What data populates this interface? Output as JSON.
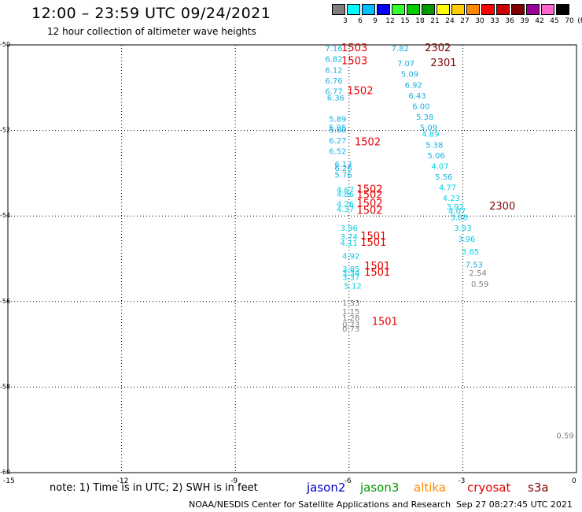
{
  "header": {
    "title": "12:00 – 23:59 UTC 09/24/2021",
    "subtitle": "12 hour collection of altimeter wave heights"
  },
  "colorbar": {
    "unit": "(ft)",
    "swatches": [
      {
        "label": "3",
        "color": "#7f7f7f"
      },
      {
        "label": "6",
        "color": "#00ffff"
      },
      {
        "label": "9",
        "color": "#00bfff"
      },
      {
        "label": "12",
        "color": "#0000ff"
      },
      {
        "label": "15",
        "color": "#33ff33"
      },
      {
        "label": "18",
        "color": "#00cc00"
      },
      {
        "label": "21",
        "color": "#009900"
      },
      {
        "label": "24",
        "color": "#ffff00"
      },
      {
        "label": "27",
        "color": "#ffcc00"
      },
      {
        "label": "30",
        "color": "#ff8800"
      },
      {
        "label": "33",
        "color": "#ff0000"
      },
      {
        "label": "36",
        "color": "#cc0000"
      },
      {
        "label": "39",
        "color": "#800000"
      },
      {
        "label": "42",
        "color": "#990099"
      },
      {
        "label": "45",
        "color": "#ff66cc"
      },
      {
        "label": "70",
        "color": "#000000"
      }
    ]
  },
  "chart_data": {
    "type": "scatter",
    "xlim": [
      -15,
      0
    ],
    "ylim": [
      -60,
      -50
    ],
    "x_ticks": [
      "-15",
      "-12",
      "-9",
      "-6",
      "-3",
      "0"
    ],
    "y_ticks": [
      "-50",
      "-52",
      "-54",
      "-56",
      "-58",
      "-60"
    ],
    "grid": "dotted",
    "wave_heights": [
      {
        "x": -6.4,
        "y": -50.15,
        "text": "7.16",
        "color": "#1ab0e0"
      },
      {
        "x": -6.4,
        "y": -50.4,
        "text": "6.82",
        "color": "#1ab0e0"
      },
      {
        "x": -6.4,
        "y": -50.65,
        "text": "6.12",
        "color": "#1ab0e0"
      },
      {
        "x": -6.4,
        "y": -50.9,
        "text": "6.76",
        "color": "#1ab0e0"
      },
      {
        "x": -6.4,
        "y": -51.15,
        "text": "6.77",
        "color": "#1ab0e0"
      },
      {
        "x": -6.35,
        "y": -51.3,
        "text": "6.36",
        "color": "#1ab0e0"
      },
      {
        "x": -6.3,
        "y": -51.8,
        "text": "5.89",
        "color": "#1ab0e0"
      },
      {
        "x": -6.3,
        "y": -52.0,
        "text": "5.95",
        "color": "#1ab0e0"
      },
      {
        "x": -6.3,
        "y": -52.05,
        "text": "5.80",
        "color": "#1ab0e0"
      },
      {
        "x": -6.3,
        "y": -52.3,
        "text": "6.27",
        "color": "#1ab0e0"
      },
      {
        "x": -6.3,
        "y": -52.55,
        "text": "6.52",
        "color": "#1ab0e0"
      },
      {
        "x": -6.15,
        "y": -52.85,
        "text": "6.13",
        "color": "#1ab0e0"
      },
      {
        "x": -6.15,
        "y": -52.95,
        "text": "6.26",
        "color": "#1ab0e0"
      },
      {
        "x": -6.15,
        "y": -53.1,
        "text": "5.76",
        "color": "#1ab0e0"
      },
      {
        "x": -6.1,
        "y": -53.45,
        "text": "4.67",
        "color": "#00d0e8"
      },
      {
        "x": -6.1,
        "y": -53.55,
        "text": "4.86",
        "color": "#00d0e8"
      },
      {
        "x": -6.1,
        "y": -53.78,
        "text": "4.26",
        "color": "#00d0e8"
      },
      {
        "x": -6.1,
        "y": -53.9,
        "text": "4.37",
        "color": "#00d0e8"
      },
      {
        "x": -6.0,
        "y": -54.35,
        "text": "3.96",
        "color": "#00d0e8"
      },
      {
        "x": -6.0,
        "y": -54.55,
        "text": "3.74",
        "color": "#00d0e8"
      },
      {
        "x": -6.0,
        "y": -54.7,
        "text": "4.11",
        "color": "#00d0e8"
      },
      {
        "x": -5.95,
        "y": -55.0,
        "text": "4.92",
        "color": "#00d0e8"
      },
      {
        "x": -5.95,
        "y": -55.3,
        "text": "3.85",
        "color": "#00d0e8"
      },
      {
        "x": -5.95,
        "y": -55.4,
        "text": "3.34",
        "color": "#00d0e8"
      },
      {
        "x": -5.95,
        "y": -55.5,
        "text": "3.37",
        "color": "#00d0e8"
      },
      {
        "x": -5.9,
        "y": -55.7,
        "text": "5.12",
        "color": "#00d0e8"
      },
      {
        "x": -5.95,
        "y": -56.1,
        "text": "1.33",
        "color": "#7f7f7f"
      },
      {
        "x": -5.95,
        "y": -56.3,
        "text": "1.15",
        "color": "#7f7f7f"
      },
      {
        "x": -5.95,
        "y": -56.45,
        "text": "1.28",
        "color": "#7f7f7f"
      },
      {
        "x": -5.95,
        "y": -56.6,
        "text": "0.73",
        "color": "#7f7f7f"
      },
      {
        "x": -5.95,
        "y": -56.7,
        "text": "0.73",
        "color": "#7f7f7f"
      },
      {
        "x": -4.65,
        "y": -50.15,
        "text": "7.82",
        "color": "#1ab0e0"
      },
      {
        "x": -4.5,
        "y": -50.5,
        "text": "7.07",
        "color": "#1ab0e0"
      },
      {
        "x": -4.4,
        "y": -50.75,
        "text": "5.09",
        "color": "#1ab0e0"
      },
      {
        "x": -4.3,
        "y": -51.0,
        "text": "6.92",
        "color": "#1ab0e0"
      },
      {
        "x": -4.2,
        "y": -51.25,
        "text": "6.43",
        "color": "#1ab0e0"
      },
      {
        "x": -4.1,
        "y": -51.5,
        "text": "6.00",
        "color": "#1ab0e0"
      },
      {
        "x": -4.0,
        "y": -51.75,
        "text": "5.38",
        "color": "#1ab0e0"
      },
      {
        "x": -3.9,
        "y": -52.0,
        "text": "5.09",
        "color": "#1ab0e0"
      },
      {
        "x": -3.85,
        "y": -52.15,
        "text": "4.89",
        "color": "#00d0e8"
      },
      {
        "x": -3.75,
        "y": -52.4,
        "text": "5.38",
        "color": "#1ab0e0"
      },
      {
        "x": -3.7,
        "y": -52.65,
        "text": "5.06",
        "color": "#1ab0e0"
      },
      {
        "x": -3.6,
        "y": -52.9,
        "text": "4.07",
        "color": "#00d0e8"
      },
      {
        "x": -3.5,
        "y": -53.15,
        "text": "5.56",
        "color": "#1ab0e0"
      },
      {
        "x": -3.4,
        "y": -53.4,
        "text": "4.77",
        "color": "#00d0e8"
      },
      {
        "x": -3.3,
        "y": -53.65,
        "text": "4.23",
        "color": "#00d0e8"
      },
      {
        "x": -3.2,
        "y": -53.85,
        "text": "3.92",
        "color": "#00d0e8"
      },
      {
        "x": -3.15,
        "y": -53.95,
        "text": "4.07",
        "color": "#00d0e8"
      },
      {
        "x": -3.1,
        "y": -54.1,
        "text": "3.88",
        "color": "#00d0e8"
      },
      {
        "x": -3.0,
        "y": -54.35,
        "text": "3.93",
        "color": "#00d0e8"
      },
      {
        "x": -2.9,
        "y": -54.6,
        "text": "3.96",
        "color": "#00d0e8"
      },
      {
        "x": -2.8,
        "y": -54.9,
        "text": "3.65",
        "color": "#00d0e8"
      },
      {
        "x": -2.7,
        "y": -55.2,
        "text": "7.53",
        "color": "#1ab0e0"
      },
      {
        "x": -2.6,
        "y": -55.4,
        "text": "2.54",
        "color": "#7f7f7f"
      },
      {
        "x": -2.55,
        "y": -55.65,
        "text": "0.59",
        "color": "#7f7f7f"
      },
      {
        "x": -0.3,
        "y": -59.2,
        "text": "0.59",
        "color": "#7f7f7f"
      }
    ],
    "pass_times": [
      {
        "x": -6.2,
        "y": -50.15,
        "text": "1503",
        "color": "#e60000"
      },
      {
        "x": -6.2,
        "y": -50.45,
        "text": "1503",
        "color": "#e60000"
      },
      {
        "x": -6.05,
        "y": -51.15,
        "text": "1502",
        "color": "#e60000"
      },
      {
        "x": -5.85,
        "y": -52.35,
        "text": "1502",
        "color": "#e60000"
      },
      {
        "x": -5.8,
        "y": -53.45,
        "text": "1502",
        "color": "#e60000"
      },
      {
        "x": -5.8,
        "y": -53.58,
        "text": "1502",
        "color": "#e60000"
      },
      {
        "x": -5.8,
        "y": -53.78,
        "text": "1502",
        "color": "#e60000"
      },
      {
        "x": -5.8,
        "y": -53.95,
        "text": "1502",
        "color": "#e60000"
      },
      {
        "x": -5.7,
        "y": -54.55,
        "text": "1501",
        "color": "#e60000"
      },
      {
        "x": -5.7,
        "y": -54.7,
        "text": "1501",
        "color": "#e60000"
      },
      {
        "x": -5.6,
        "y": -55.25,
        "text": "1501",
        "color": "#e60000"
      },
      {
        "x": -5.6,
        "y": -55.4,
        "text": "1501",
        "color": "#e60000"
      },
      {
        "x": -5.4,
        "y": -56.55,
        "text": "1501",
        "color": "#e60000"
      },
      {
        "x": -4.0,
        "y": -50.15,
        "text": "2302",
        "color": "#800000"
      },
      {
        "x": -3.85,
        "y": -50.5,
        "text": "2301",
        "color": "#800000"
      },
      {
        "x": -2.3,
        "y": -53.85,
        "text": "2300",
        "color": "#800000"
      }
    ]
  },
  "footer": {
    "note": "note:  1) Time is in UTC;  2) SWH is in feet",
    "missions": [
      {
        "label": "jason2",
        "color": "#0000cc"
      },
      {
        "label": "jason3",
        "color": "#009900"
      },
      {
        "label": "altika",
        "color": "#ff8800"
      },
      {
        "label": "cryosat",
        "color": "#e60000"
      },
      {
        "label": "s3a",
        "color": "#800000"
      }
    ],
    "credit": "NOAA/NESDIS Center for Satellite Applications and Research",
    "timestamp": "Sep 27 08:27:45 UTC 2021"
  }
}
